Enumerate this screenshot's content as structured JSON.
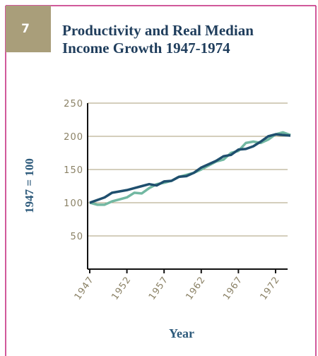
{
  "figure_number": "7",
  "chart_data": {
    "type": "line",
    "title": [
      "Productivity and Real Median",
      "Income Growth 1947-1974"
    ],
    "y_label": "1947 = 100",
    "x_label": "Year",
    "x": [
      1947,
      1948,
      1949,
      1950,
      1951,
      1952,
      1953,
      1954,
      1955,
      1956,
      1957,
      1958,
      1959,
      1960,
      1961,
      1962,
      1963,
      1964,
      1965,
      1966,
      1967,
      1968,
      1969,
      1970,
      1971,
      1972,
      1973,
      1974
    ],
    "series": [
      {
        "color": "#72b8a2",
        "values": [
          100,
          97,
          97,
          102,
          105,
          108,
          115,
          114,
          122,
          128,
          130,
          133,
          139,
          142,
          145,
          150,
          156,
          162,
          165,
          175,
          178,
          190,
          192,
          190,
          195,
          203,
          206,
          202
        ]
      },
      {
        "color": "#1f4f6e",
        "values": [
          100,
          104,
          108,
          115,
          117,
          119,
          122,
          125,
          128,
          126,
          132,
          133,
          139,
          140,
          145,
          153,
          158,
          163,
          170,
          172,
          180,
          181,
          185,
          192,
          200,
          203,
          202,
          201
        ]
      }
    ],
    "xlim": [
      1947,
      1974
    ],
    "ylim": [
      0,
      250
    ],
    "xticks": [
      1947,
      1952,
      1957,
      1962,
      1967,
      1972
    ],
    "yticks": [
      50,
      100,
      150,
      200,
      250
    ],
    "grid": true
  }
}
